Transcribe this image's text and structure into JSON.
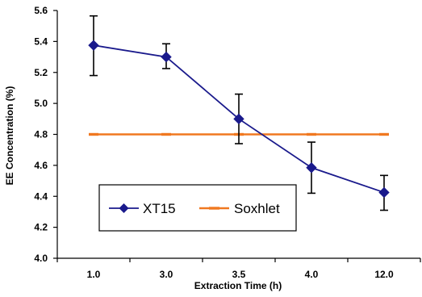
{
  "chart_data": {
    "type": "line",
    "xlabel": "Extraction Time (h)",
    "ylabel": "EE Concentration (%)",
    "categories": [
      "1.0",
      "3.0",
      "3.5",
      "4.0",
      "12.0"
    ],
    "ylim": [
      4.0,
      5.6
    ],
    "yticks": [
      "4.0",
      "4.2",
      "4.4",
      "4.6",
      "4.8",
      "5.0",
      "5.2",
      "5.4",
      "5.6"
    ],
    "grid": false,
    "legend_position": "bottom-left",
    "series": [
      {
        "name": "XT15",
        "color": "#1a1a8c",
        "marker": "diamond",
        "values": [
          5.375,
          5.3,
          4.9,
          4.585,
          4.425
        ],
        "error_upper": [
          5.565,
          5.385,
          5.06,
          4.75,
          4.535
        ],
        "error_lower": [
          5.18,
          5.225,
          4.74,
          4.42,
          4.31
        ]
      },
      {
        "name": "Soxhlet",
        "color": "#f07820",
        "marker": "dash",
        "values": [
          4.8,
          4.8,
          4.8,
          4.8,
          4.8
        ]
      }
    ]
  }
}
